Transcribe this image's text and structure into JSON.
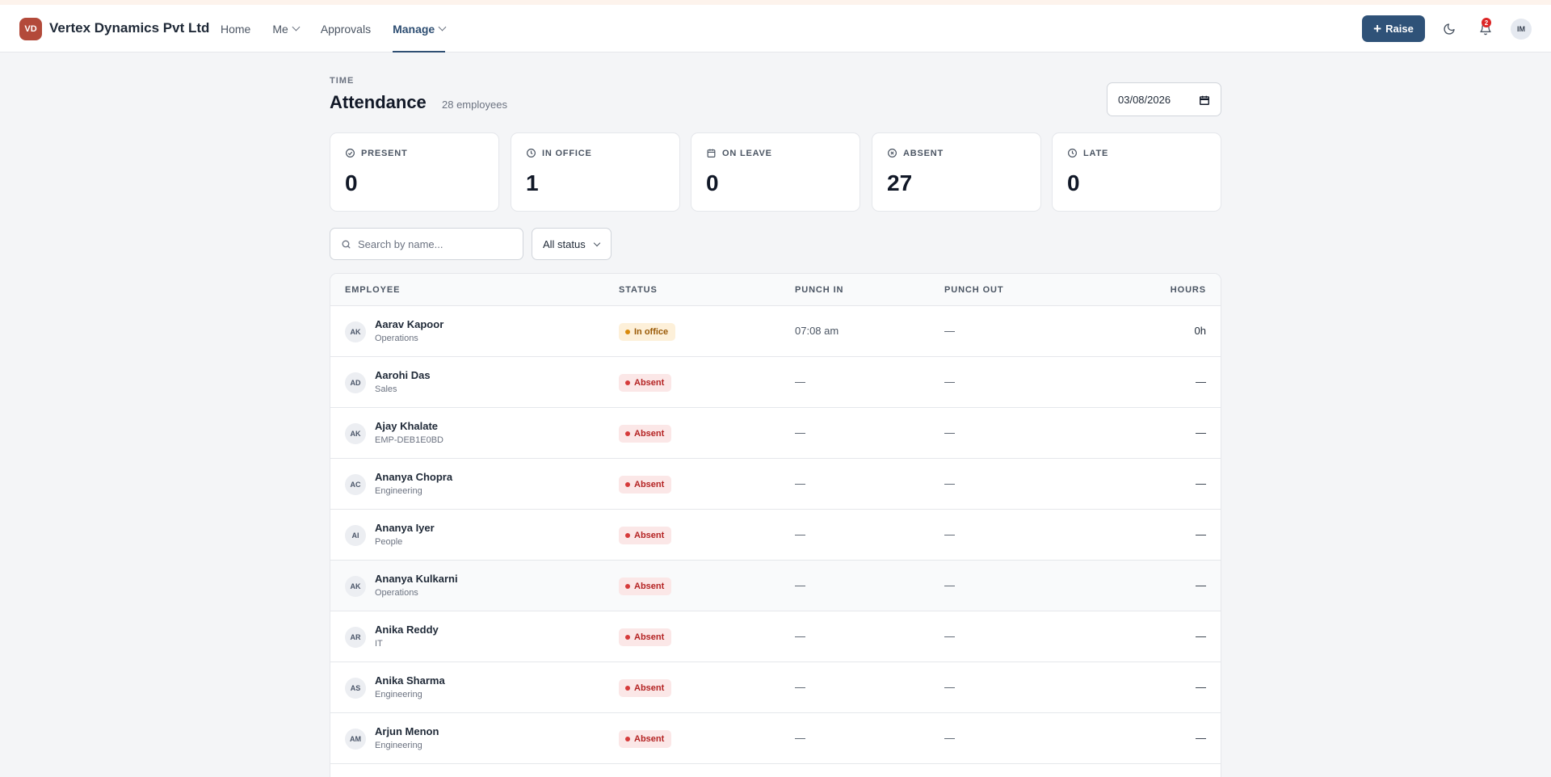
{
  "app": {
    "logo_initials": "VD",
    "company": "Vertex Dynamics Pvt Ltd",
    "nav": [
      {
        "label": "Home"
      },
      {
        "label": "Me"
      },
      {
        "label": "Approvals"
      },
      {
        "label": "Manage"
      }
    ],
    "raise_label": "Raise",
    "notification_count": "2",
    "user_initials": "IM",
    "colors": {
      "brand": "#b34a3a",
      "accent": "#2f5278",
      "absent": "#b42323",
      "in_office": "#9a5a07"
    }
  },
  "page": {
    "section": "TIME",
    "title": "Attendance",
    "employee_count": "28 employees",
    "date_value": "03/08/2026"
  },
  "stats": [
    {
      "label": "PRESENT",
      "value": "0",
      "icon": "check-circle-icon"
    },
    {
      "label": "IN OFFICE",
      "value": "1",
      "icon": "clock-icon"
    },
    {
      "label": "ON LEAVE",
      "value": "0",
      "icon": "calendar-icon"
    },
    {
      "label": "ABSENT",
      "value": "27",
      "icon": "x-circle-icon"
    },
    {
      "label": "LATE",
      "value": "0",
      "icon": "clock-icon"
    }
  ],
  "filters": {
    "search_placeholder": "Search by name...",
    "status_selected": "All status"
  },
  "table": {
    "columns": [
      "EMPLOYEE",
      "STATUS",
      "PUNCH IN",
      "PUNCH OUT",
      "HOURS"
    ],
    "rows": [
      {
        "initials": "AK",
        "name": "Aarav Kapoor",
        "dept": "Operations",
        "status": "In office",
        "punch_in": "07:08 am",
        "punch_out": "—",
        "hours": "0h"
      },
      {
        "initials": "AD",
        "name": "Aarohi Das",
        "dept": "Sales",
        "status": "Absent",
        "punch_in": "—",
        "punch_out": "—",
        "hours": "—"
      },
      {
        "initials": "AK",
        "name": "Ajay Khalate",
        "dept": "EMP-DEB1E0BD",
        "status": "Absent",
        "punch_in": "—",
        "punch_out": "—",
        "hours": "—"
      },
      {
        "initials": "AC",
        "name": "Ananya Chopra",
        "dept": "Engineering",
        "status": "Absent",
        "punch_in": "—",
        "punch_out": "—",
        "hours": "—"
      },
      {
        "initials": "AI",
        "name": "Ananya Iyer",
        "dept": "People",
        "status": "Absent",
        "punch_in": "—",
        "punch_out": "—",
        "hours": "—"
      },
      {
        "initials": "AK",
        "name": "Ananya Kulkarni",
        "dept": "Operations",
        "status": "Absent",
        "punch_in": "—",
        "punch_out": "—",
        "hours": "—"
      },
      {
        "initials": "AR",
        "name": "Anika Reddy",
        "dept": "IT",
        "status": "Absent",
        "punch_in": "—",
        "punch_out": "—",
        "hours": "—"
      },
      {
        "initials": "AS",
        "name": "Anika Sharma",
        "dept": "Engineering",
        "status": "Absent",
        "punch_in": "—",
        "punch_out": "—",
        "hours": "—"
      },
      {
        "initials": "AM",
        "name": "Arjun Menon",
        "dept": "Engineering",
        "status": "Absent",
        "punch_in": "—",
        "punch_out": "—",
        "hours": "—"
      }
    ]
  }
}
